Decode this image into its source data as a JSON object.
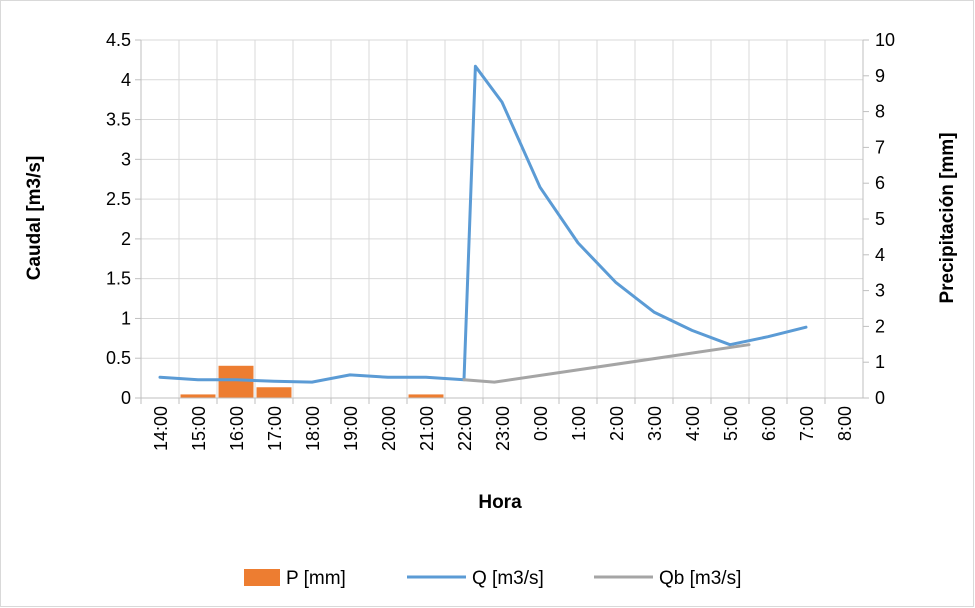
{
  "chart_data": {
    "type": "line",
    "x_label": "Hora",
    "y_left_label": "Caudal [m3/s]",
    "y_right_label": "Precipitación [mm]",
    "categories": [
      "14:00",
      "15:00",
      "16:00",
      "17:00",
      "18:00",
      "19:00",
      "20:00",
      "21:00",
      "22:00",
      "23:00",
      "0:00",
      "1:00",
      "2:00",
      "3:00",
      "4:00",
      "5:00",
      "6:00",
      "7:00",
      "8:00"
    ],
    "y_left_ticks": [
      "0",
      "0.5",
      "1",
      "1.5",
      "2",
      "2.5",
      "3",
      "3.5",
      "4",
      "4.5"
    ],
    "y_right_ticks": [
      "0",
      "1",
      "2",
      "3",
      "4",
      "5",
      "6",
      "7",
      "8",
      "9",
      "10"
    ],
    "y_left_range": [
      0,
      4.5
    ],
    "y_right_range": [
      0,
      10
    ],
    "grid": true,
    "legend_position": "bottom",
    "series": [
      {
        "name": "P [mm]",
        "kind": "bar",
        "axis": "right",
        "color": "#ED7D31",
        "values": [
          0,
          0.1,
          0.9,
          0.3,
          0,
          0,
          0,
          0.1,
          0,
          0,
          0,
          0,
          0,
          0,
          0,
          0,
          0,
          0,
          0
        ]
      },
      {
        "name": "Q [m3/s]",
        "kind": "line",
        "axis": "left",
        "color": "#5B9BD5",
        "points": [
          [
            0,
            0.26
          ],
          [
            1,
            0.23
          ],
          [
            2,
            0.23
          ],
          [
            3,
            0.21
          ],
          [
            4,
            0.2
          ],
          [
            5,
            0.29
          ],
          [
            6,
            0.26
          ],
          [
            7,
            0.26
          ],
          [
            8,
            0.23
          ],
          [
            8.3,
            4.17
          ],
          [
            9.0,
            3.72
          ],
          [
            10.0,
            2.65
          ],
          [
            11.0,
            1.95
          ],
          [
            12.0,
            1.45
          ],
          [
            13.0,
            1.08
          ],
          [
            14.0,
            0.85
          ],
          [
            15.0,
            0.67
          ],
          [
            16.0,
            0.77
          ],
          [
            17.0,
            0.89
          ]
        ]
      },
      {
        "name": "Qb [m3/s]",
        "kind": "line",
        "axis": "left",
        "color": "#A5A5A5",
        "points": [
          [
            8,
            0.23
          ],
          [
            8.8,
            0.2
          ],
          [
            15.5,
            0.67
          ]
        ]
      }
    ]
  }
}
